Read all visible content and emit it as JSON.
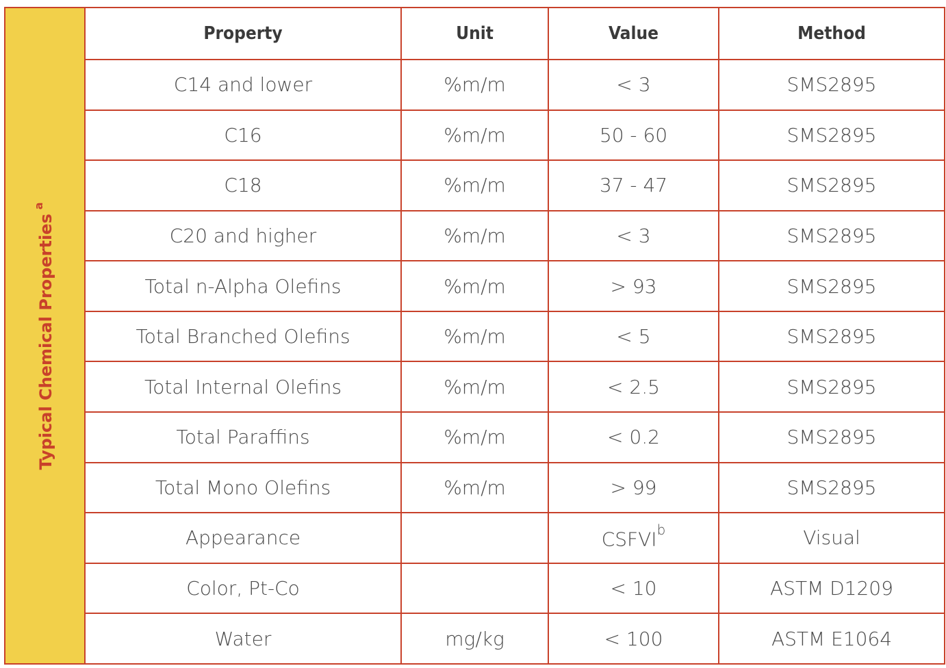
{
  "side_label": "Typical Chemical Properties",
  "side_label_superscript": "a",
  "headers": {
    "property": "Property",
    "unit": "Unit",
    "value": "Value",
    "method": "Method"
  },
  "rows": [
    {
      "property": "C14 and lower",
      "unit": "%m/m",
      "value": "< 3",
      "value_sup": "",
      "method": "SMS2895"
    },
    {
      "property": "C16",
      "unit": "%m/m",
      "value": "50 - 60",
      "value_sup": "",
      "method": "SMS2895"
    },
    {
      "property": "C18",
      "unit": "%m/m",
      "value": "37 - 47",
      "value_sup": "",
      "method": "SMS2895"
    },
    {
      "property": "C20 and higher",
      "unit": "%m/m",
      "value": "< 3",
      "value_sup": "",
      "method": "SMS2895"
    },
    {
      "property": "Total n-Alpha Olefins",
      "unit": "%m/m",
      "value": "> 93",
      "value_sup": "",
      "method": "SMS2895"
    },
    {
      "property": "Total Branched Olefins",
      "unit": "%m/m",
      "value": "< 5",
      "value_sup": "",
      "method": "SMS2895"
    },
    {
      "property": "Total Internal Olefins",
      "unit": "%m/m",
      "value": "< 2.5",
      "value_sup": "",
      "method": "SMS2895"
    },
    {
      "property": "Total Paraffins",
      "unit": "%m/m",
      "value": "< 0.2",
      "value_sup": "",
      "method": "SMS2895"
    },
    {
      "property": "Total Mono Olefins",
      "unit": "%m/m",
      "value": "> 99",
      "value_sup": "",
      "method": "SMS2895"
    },
    {
      "property": "Appearance",
      "unit": "",
      "value": "CSFVI",
      "value_sup": "b",
      "method": "Visual"
    },
    {
      "property": "Color, Pt-Co",
      "unit": "",
      "value": "< 10",
      "value_sup": "",
      "method": "ASTM D1209"
    },
    {
      "property": "Water",
      "unit": "mg/kg",
      "value": "< 100",
      "value_sup": "",
      "method": "ASTM E1064"
    }
  ],
  "colors": {
    "border": "#c8412a",
    "side_background": "#f2d04a",
    "side_text": "#c8412a",
    "header_text": "#3a3a3a",
    "cell_text": "#4a4a4a"
  }
}
